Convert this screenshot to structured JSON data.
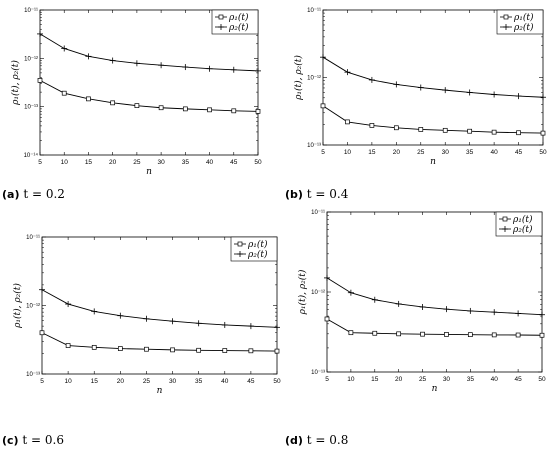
{
  "chart_data": [
    {
      "type": "line",
      "panel": "a",
      "caption_label": "(a)",
      "caption_text": "t = 0.2",
      "xlabel": "n",
      "ylabel": "ρ₁(t), ρ₂(t)",
      "x": [
        5,
        10,
        15,
        20,
        25,
        30,
        35,
        40,
        45,
        50
      ],
      "xticks": [
        "5",
        "10",
        "15",
        "20",
        "25",
        "30",
        "35",
        "40",
        "45",
        "50"
      ],
      "ylim_exp": [
        -14,
        -11
      ],
      "yticks": [
        "10⁻¹⁴",
        "10⁻¹³",
        "10⁻¹²",
        "10⁻¹¹"
      ],
      "legend_position": "top-right",
      "series": [
        {
          "name": "ρ₁(t)",
          "marker": "square",
          "values": [
            3.5e-13,
            1.9e-13,
            1.45e-13,
            1.2e-13,
            1.05e-13,
            9.5e-14,
            9e-14,
            8.6e-14,
            8.2e-14,
            8e-14
          ]
        },
        {
          "name": "ρ₂(t)",
          "marker": "plus",
          "values": [
            3.2e-12,
            1.6e-12,
            1.1e-12,
            9e-13,
            7.9e-13,
            7.2e-13,
            6.6e-13,
            6.1e-13,
            5.8e-13,
            5.5e-13
          ]
        }
      ]
    },
    {
      "type": "line",
      "panel": "b",
      "caption_label": "(b)",
      "caption_text": "t = 0.4",
      "xlabel": "n",
      "ylabel": "ρ₁(t), ρ₂(t)",
      "x": [
        5,
        10,
        15,
        20,
        25,
        30,
        35,
        40,
        45,
        50
      ],
      "xticks": [
        "5",
        "10",
        "15",
        "20",
        "25",
        "30",
        "35",
        "40",
        "45",
        "50"
      ],
      "ylim_exp": [
        -13,
        -11
      ],
      "yticks": [
        "10⁻¹³",
        "10⁻¹²",
        "10⁻¹¹"
      ],
      "legend_position": "top-right",
      "series": [
        {
          "name": "ρ₁(t)",
          "marker": "square",
          "values": [
            3.8e-13,
            2.2e-13,
            1.95e-13,
            1.8e-13,
            1.7e-13,
            1.65e-13,
            1.6e-13,
            1.55e-13,
            1.52e-13,
            1.5e-13
          ]
        },
        {
          "name": "ρ₂(t)",
          "marker": "plus",
          "values": [
            2e-12,
            1.2e-12,
            9.2e-13,
            7.9e-13,
            7.1e-13,
            6.5e-13,
            6e-13,
            5.6e-13,
            5.3e-13,
            5.1e-13
          ]
        }
      ]
    },
    {
      "type": "line",
      "panel": "c",
      "caption_label": "(c)",
      "caption_text": "t = 0.6",
      "xlabel": "n",
      "ylabel": "ρ₁(t), ρ₂(t)",
      "x": [
        5,
        10,
        15,
        20,
        25,
        30,
        35,
        40,
        45,
        50
      ],
      "xticks": [
        "5",
        "10",
        "15",
        "20",
        "25",
        "30",
        "35",
        "40",
        "45",
        "50"
      ],
      "ylim_exp": [
        -13,
        -11
      ],
      "yticks": [
        "10⁻¹³",
        "10⁻¹²",
        "10⁻¹¹"
      ],
      "legend_position": "top-right",
      "series": [
        {
          "name": "ρ₁(t)",
          "marker": "square",
          "values": [
            4e-13,
            2.6e-13,
            2.45e-13,
            2.35e-13,
            2.3e-13,
            2.25e-13,
            2.22e-13,
            2.2e-13,
            2.18e-13,
            2.16e-13
          ]
        },
        {
          "name": "ρ₂(t)",
          "marker": "plus",
          "values": [
            1.7e-12,
            1.05e-12,
            8.2e-13,
            7.1e-13,
            6.4e-13,
            5.9e-13,
            5.5e-13,
            5.2e-13,
            5e-13,
            4.8e-13
          ]
        }
      ]
    },
    {
      "type": "line",
      "panel": "d",
      "caption_label": "(d)",
      "caption_text": "t = 0.8",
      "xlabel": "n",
      "ylabel": "ρ₁(t), ρ₂(t)",
      "x": [
        5,
        10,
        15,
        20,
        25,
        30,
        35,
        40,
        45,
        50
      ],
      "xticks": [
        "5",
        "10",
        "15",
        "20",
        "25",
        "30",
        "35",
        "40",
        "45",
        "50"
      ],
      "ylim_exp": [
        -13,
        -11
      ],
      "yticks": [
        "10⁻¹³",
        "10⁻¹²",
        "10⁻¹¹"
      ],
      "legend_position": "top-right",
      "series": [
        {
          "name": "ρ₁(t)",
          "marker": "square",
          "values": [
            4.6e-13,
            3.1e-13,
            3.05e-13,
            3e-13,
            2.97e-13,
            2.95e-13,
            2.93e-13,
            2.91e-13,
            2.9e-13,
            2.88e-13
          ]
        },
        {
          "name": "ρ₂(t)",
          "marker": "plus",
          "values": [
            1.5e-12,
            9.8e-13,
            8e-13,
            7.1e-13,
            6.5e-13,
            6.1e-13,
            5.8e-13,
            5.6e-13,
            5.4e-13,
            5.2e-13
          ]
        }
      ]
    }
  ]
}
